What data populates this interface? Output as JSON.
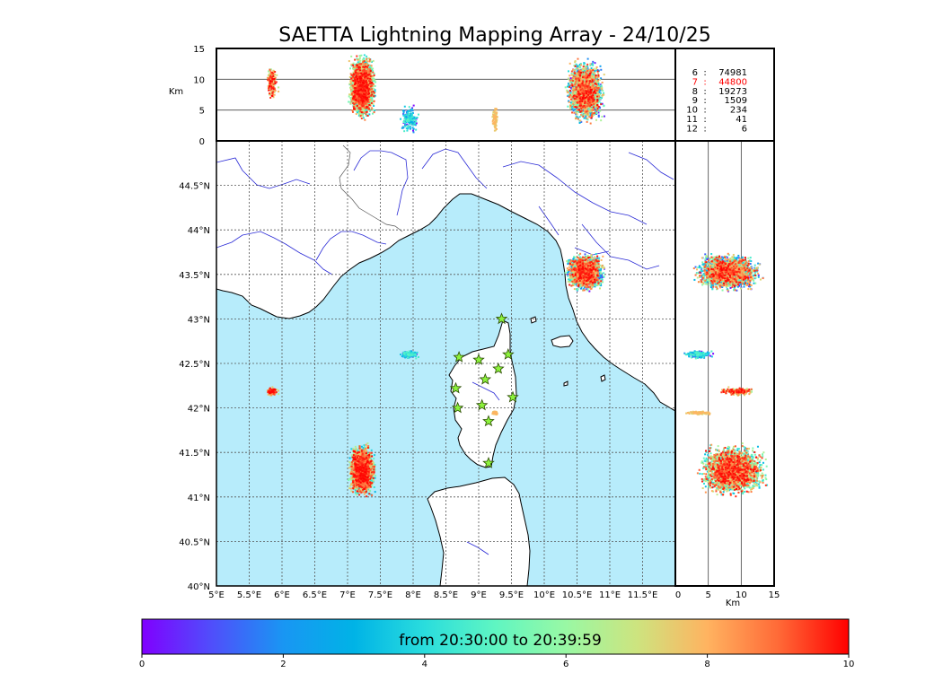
{
  "title": "SAETTA Lightning Mapping Array - 24/10/25",
  "colors": {
    "sea": "#b7ecfb",
    "land": "#ffffff",
    "coast": "#000000",
    "rivers": "#2b2bd6",
    "borders": "#555555",
    "grid": "#555555",
    "highlight_count": "#ff0000",
    "station_fill": "#8cf23c",
    "station_edge": "#2a4a00"
  },
  "colormap": {
    "name": "rainbow",
    "stops": [
      "#8000ff",
      "#4f4ffb",
      "#1996f3",
      "#00b3e6",
      "#2adddd",
      "#5ff6c2",
      "#99f8a4",
      "#cde47f",
      "#ffb360",
      "#ff6a37",
      "#ff0000"
    ]
  },
  "colorbar": {
    "label": "from 20:30:00 to 20:39:59",
    "range": [
      0,
      10
    ],
    "ticks": [
      "0",
      "2",
      "4",
      "6",
      "8",
      "10"
    ]
  },
  "chart_data": {
    "type": "scatter",
    "title": "SAETTA Lightning Mapping Array - 24/10/25",
    "color_value": "time (minutes since 20:30:00)",
    "map": {
      "xlim": [
        5.0,
        12.0
      ],
      "ylim": [
        40.0,
        45.0
      ],
      "xticks": [
        "5°E",
        "5.5°E",
        "6°E",
        "6.5°E",
        "7°E",
        "7.5°E",
        "8°E",
        "8.5°E",
        "9°E",
        "9.5°E",
        "10°E",
        "10.5°E",
        "11°E",
        "11.5°E"
      ],
      "yticks": [
        "40°N",
        "40.5°N",
        "41°N",
        "41.5°N",
        "42°N",
        "42.5°N",
        "43°N",
        "43.5°N",
        "44°N",
        "44.5°N"
      ],
      "grid": true
    },
    "altitude_lon": {
      "ylabel": "Km",
      "ylim": [
        0,
        15
      ],
      "yticks": [
        "0",
        "5",
        "10",
        "15"
      ]
    },
    "altitude_lat": {
      "xlabel": "Km",
      "xlim": [
        0,
        15
      ],
      "xticks": [
        "0",
        "5",
        "10",
        "15"
      ]
    },
    "stations": [
      [
        9.35,
        43.0
      ],
      [
        8.7,
        42.57
      ],
      [
        9.0,
        42.54
      ],
      [
        9.45,
        42.6
      ],
      [
        9.3,
        42.44
      ],
      [
        9.1,
        42.32
      ],
      [
        8.65,
        42.22
      ],
      [
        9.52,
        42.12
      ],
      [
        9.05,
        42.03
      ],
      [
        8.68,
        42.0
      ],
      [
        9.15,
        41.85
      ],
      [
        9.15,
        41.38
      ]
    ],
    "clusters": [
      {
        "lon": [
          10.3,
          10.95
        ],
        "lat": [
          43.3,
          43.75
        ],
        "alt": [
          2.5,
          13.5
        ],
        "t": [
          0,
          10
        ],
        "n": 2600
      },
      {
        "lon": [
          7.0,
          7.45
        ],
        "lat": [
          40.98,
          41.62
        ],
        "alt": [
          3.0,
          14.5
        ],
        "t": [
          3,
          10
        ],
        "n": 2800
      },
      {
        "lon": [
          7.8,
          8.1
        ],
        "lat": [
          42.55,
          42.65
        ],
        "alt": [
          1.0,
          6.0
        ],
        "t": [
          0,
          5
        ],
        "n": 180
      },
      {
        "lon": [
          5.75,
          5.95
        ],
        "lat": [
          42.13,
          42.24
        ],
        "alt": [
          6.0,
          13.0
        ],
        "t": [
          6,
          10
        ],
        "n": 160
      },
      {
        "lon": [
          9.2,
          9.3
        ],
        "lat": [
          41.92,
          41.97
        ],
        "alt": [
          1.0,
          6.5
        ],
        "t": [
          7,
          8
        ],
        "n": 90
      }
    ],
    "source_counts": [
      {
        "stations": "6",
        "count": "74981",
        "highlight": false
      },
      {
        "stations": "7",
        "count": "44800",
        "highlight": true
      },
      {
        "stations": "8",
        "count": "19273",
        "highlight": false
      },
      {
        "stations": "9",
        "count": "1509",
        "highlight": false
      },
      {
        "stations": "10",
        "count": "234",
        "highlight": false
      },
      {
        "stations": "11",
        "count": "41",
        "highlight": false
      },
      {
        "stations": "12",
        "count": "6",
        "highlight": false
      }
    ]
  }
}
